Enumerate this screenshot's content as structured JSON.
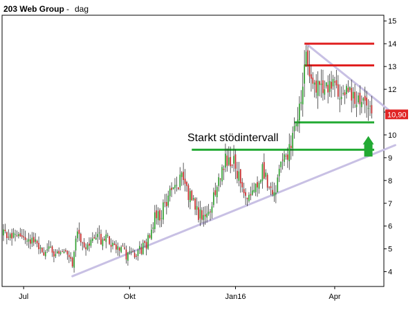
{
  "header": {
    "name": "203 Web Group",
    "separator": "-",
    "period": "dag"
  },
  "colors": {
    "up_candle": "#2e9e2e",
    "down_candle": "#c42828",
    "wick": "#333333",
    "resistance": "#e02020",
    "support": "#22aa33",
    "trendline": "#c8c0e4",
    "arrow": "#22aa33",
    "price_badge_bg": "#e02424",
    "axis": "#000000"
  },
  "chart_data": {
    "type": "candlestick",
    "title": "203 Web Group - dag",
    "ylim": [
      3.35,
      15.25
    ],
    "yticks": [
      4,
      5,
      6,
      7,
      8,
      9,
      10,
      11,
      12,
      13,
      14,
      15
    ],
    "xlim": [
      0,
      225
    ],
    "xticks": [
      {
        "label": "Jul",
        "t": 12
      },
      {
        "label": "Okt",
        "t": 75
      },
      {
        "label": "Jan16",
        "t": 138
      },
      {
        "label": "Apr",
        "t": 197
      }
    ],
    "last_price": "10,90",
    "last_price_value": 10.9,
    "annotation": "Starkt stödintervall",
    "resistance_levels": [
      {
        "value": 14.0,
        "t_start": 179,
        "t_end": 228
      },
      {
        "value": 13.05,
        "t_start": 179,
        "t_end": 228
      }
    ],
    "support_levels": [
      {
        "value": 10.55,
        "t_start": 173,
        "t_end": 228
      },
      {
        "value": 9.35,
        "t_start": 112,
        "t_end": 228
      }
    ],
    "trendlines": [
      {
        "name": "rising",
        "t1": 41,
        "v1": 3.8,
        "t2": 233,
        "v2": 9.55
      },
      {
        "name": "falling",
        "t1": 180,
        "v1": 14.0,
        "t2": 229,
        "v2": 11.1
      }
    ],
    "arrow": {
      "t": 217,
      "from": 9.05,
      "to": 9.95
    },
    "series_points": [
      [
        0,
        5.6
      ],
      [
        8,
        5.5
      ],
      [
        16,
        5.4
      ],
      [
        24,
        4.9
      ],
      [
        32,
        4.8
      ],
      [
        39,
        4.6
      ],
      [
        41,
        4.1
      ],
      [
        44,
        5.8
      ],
      [
        48,
        5.2
      ],
      [
        55,
        5.5
      ],
      [
        62,
        5.4
      ],
      [
        68,
        5.0
      ],
      [
        75,
        4.7
      ],
      [
        80,
        4.9
      ],
      [
        85,
        5.2
      ],
      [
        90,
        6.3
      ],
      [
        96,
        6.8
      ],
      [
        101,
        7.8
      ],
      [
        106,
        8.0
      ],
      [
        111,
        7.3
      ],
      [
        116,
        6.5
      ],
      [
        121,
        6.7
      ],
      [
        126,
        7.3
      ],
      [
        129,
        8.4
      ],
      [
        134,
        9.1
      ],
      [
        138,
        8.7
      ],
      [
        142,
        7.6
      ],
      [
        146,
        7.1
      ],
      [
        150,
        7.6
      ],
      [
        154,
        8.4
      ],
      [
        158,
        7.6
      ],
      [
        162,
        7.8
      ],
      [
        166,
        8.9
      ],
      [
        170,
        9.4
      ],
      [
        173,
        10.3
      ],
      [
        176,
        11.2
      ],
      [
        179,
        13.2
      ],
      [
        182,
        13.0
      ],
      [
        185,
        12.2
      ],
      [
        190,
        11.9
      ],
      [
        195,
        12.5
      ],
      [
        200,
        12.1
      ],
      [
        205,
        11.9
      ],
      [
        210,
        11.7
      ],
      [
        214,
        11.5
      ],
      [
        217,
        11.0
      ],
      [
        219,
        10.9
      ]
    ]
  }
}
